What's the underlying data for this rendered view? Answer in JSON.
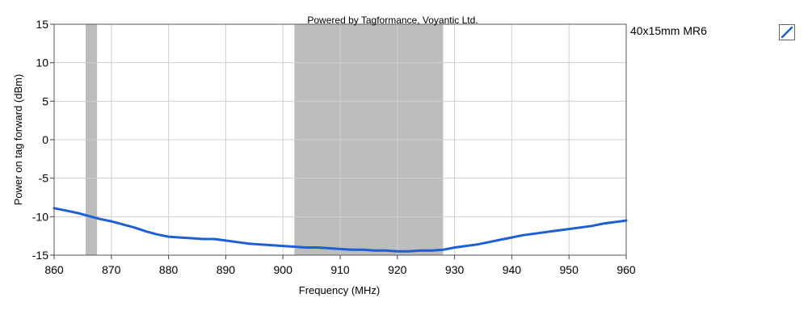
{
  "chart_data": {
    "type": "line",
    "title": "Powered by Tagformance, Voyantic Ltd.",
    "xlabel": "Frequency (MHz)",
    "ylabel": "Power on tag forward (dBm)",
    "xlim": [
      860,
      960
    ],
    "ylim": [
      -15,
      15
    ],
    "x_ticks": [
      860,
      870,
      880,
      890,
      900,
      910,
      920,
      930,
      940,
      950,
      960
    ],
    "y_ticks": [
      15,
      10,
      5,
      0,
      -5,
      -10,
      -15
    ],
    "grid": true,
    "legend_placement": "right",
    "shaded_bands": [
      {
        "x_start": 865.5,
        "x_end": 867.5
      },
      {
        "x_start": 902,
        "x_end": 928
      }
    ],
    "series": [
      {
        "name": "40x15mm MR6",
        "color": "#1f5fd6",
        "x": [
          860,
          862,
          864,
          866,
          868,
          870,
          872,
          874,
          876,
          878,
          880,
          882,
          884,
          886,
          888,
          890,
          892,
          894,
          896,
          898,
          900,
          902,
          904,
          906,
          908,
          910,
          912,
          914,
          916,
          918,
          920,
          922,
          924,
          926,
          928,
          930,
          932,
          934,
          936,
          938,
          940,
          942,
          944,
          946,
          948,
          950,
          952,
          954,
          956,
          958,
          960
        ],
        "y": [
          -8.9,
          -9.2,
          -9.5,
          -9.9,
          -10.3,
          -10.6,
          -11.0,
          -11.4,
          -11.9,
          -12.3,
          -12.6,
          -12.7,
          -12.8,
          -12.9,
          -12.9,
          -13.1,
          -13.3,
          -13.5,
          -13.6,
          -13.7,
          -13.8,
          -13.9,
          -14.0,
          -14.0,
          -14.1,
          -14.2,
          -14.3,
          -14.3,
          -14.4,
          -14.4,
          -14.5,
          -14.5,
          -14.4,
          -14.4,
          -14.3,
          -14.0,
          -13.8,
          -13.6,
          -13.3,
          -13.0,
          -12.7,
          -12.4,
          -12.2,
          -12.0,
          -11.8,
          -11.6,
          -11.4,
          -11.2,
          -10.9,
          -10.7,
          -10.5
        ]
      }
    ]
  }
}
